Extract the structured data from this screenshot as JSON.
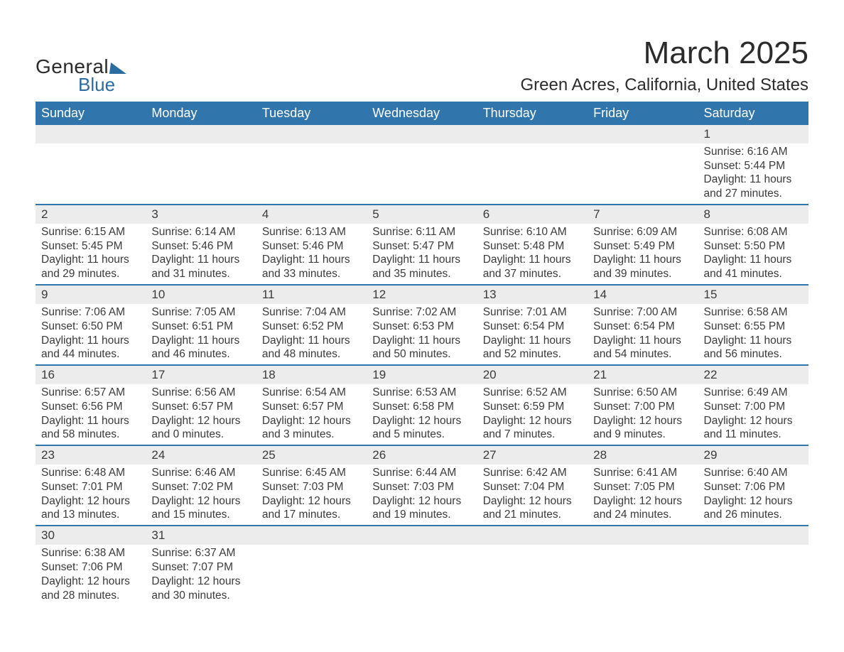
{
  "header": {
    "logo_general": "General",
    "logo_blue": "Blue",
    "month_title": "March 2025",
    "location": "Green Acres, California, United States"
  },
  "styling": {
    "page_bg": "#ffffff",
    "header_bg": "#3175ad",
    "header_text_color": "#ffffff",
    "daynum_bg": "#ececec",
    "row_border_color": "#3175ad",
    "body_text_color": "#3a3a3a",
    "logo_text_color": "#2b2b2b",
    "logo_blue_color": "#2b6ca3",
    "month_title_fontsize": 44,
    "location_fontsize": 24,
    "header_fontsize": 18,
    "daynum_fontsize": 17,
    "cell_fontsize": 15.5,
    "columns": 7,
    "weeks": 6
  },
  "day_headers": [
    "Sunday",
    "Monday",
    "Tuesday",
    "Wednesday",
    "Thursday",
    "Friday",
    "Saturday"
  ],
  "weeks": [
    [
      null,
      null,
      null,
      null,
      null,
      null,
      {
        "n": "1",
        "sr": "Sunrise: 6:16 AM",
        "ss": "Sunset: 5:44 PM",
        "d1": "Daylight: 11 hours",
        "d2": "and 27 minutes."
      }
    ],
    [
      {
        "n": "2",
        "sr": "Sunrise: 6:15 AM",
        "ss": "Sunset: 5:45 PM",
        "d1": "Daylight: 11 hours",
        "d2": "and 29 minutes."
      },
      {
        "n": "3",
        "sr": "Sunrise: 6:14 AM",
        "ss": "Sunset: 5:46 PM",
        "d1": "Daylight: 11 hours",
        "d2": "and 31 minutes."
      },
      {
        "n": "4",
        "sr": "Sunrise: 6:13 AM",
        "ss": "Sunset: 5:46 PM",
        "d1": "Daylight: 11 hours",
        "d2": "and 33 minutes."
      },
      {
        "n": "5",
        "sr": "Sunrise: 6:11 AM",
        "ss": "Sunset: 5:47 PM",
        "d1": "Daylight: 11 hours",
        "d2": "and 35 minutes."
      },
      {
        "n": "6",
        "sr": "Sunrise: 6:10 AM",
        "ss": "Sunset: 5:48 PM",
        "d1": "Daylight: 11 hours",
        "d2": "and 37 minutes."
      },
      {
        "n": "7",
        "sr": "Sunrise: 6:09 AM",
        "ss": "Sunset: 5:49 PM",
        "d1": "Daylight: 11 hours",
        "d2": "and 39 minutes."
      },
      {
        "n": "8",
        "sr": "Sunrise: 6:08 AM",
        "ss": "Sunset: 5:50 PM",
        "d1": "Daylight: 11 hours",
        "d2": "and 41 minutes."
      }
    ],
    [
      {
        "n": "9",
        "sr": "Sunrise: 7:06 AM",
        "ss": "Sunset: 6:50 PM",
        "d1": "Daylight: 11 hours",
        "d2": "and 44 minutes."
      },
      {
        "n": "10",
        "sr": "Sunrise: 7:05 AM",
        "ss": "Sunset: 6:51 PM",
        "d1": "Daylight: 11 hours",
        "d2": "and 46 minutes."
      },
      {
        "n": "11",
        "sr": "Sunrise: 7:04 AM",
        "ss": "Sunset: 6:52 PM",
        "d1": "Daylight: 11 hours",
        "d2": "and 48 minutes."
      },
      {
        "n": "12",
        "sr": "Sunrise: 7:02 AM",
        "ss": "Sunset: 6:53 PM",
        "d1": "Daylight: 11 hours",
        "d2": "and 50 minutes."
      },
      {
        "n": "13",
        "sr": "Sunrise: 7:01 AM",
        "ss": "Sunset: 6:54 PM",
        "d1": "Daylight: 11 hours",
        "d2": "and 52 minutes."
      },
      {
        "n": "14",
        "sr": "Sunrise: 7:00 AM",
        "ss": "Sunset: 6:54 PM",
        "d1": "Daylight: 11 hours",
        "d2": "and 54 minutes."
      },
      {
        "n": "15",
        "sr": "Sunrise: 6:58 AM",
        "ss": "Sunset: 6:55 PM",
        "d1": "Daylight: 11 hours",
        "d2": "and 56 minutes."
      }
    ],
    [
      {
        "n": "16",
        "sr": "Sunrise: 6:57 AM",
        "ss": "Sunset: 6:56 PM",
        "d1": "Daylight: 11 hours",
        "d2": "and 58 minutes."
      },
      {
        "n": "17",
        "sr": "Sunrise: 6:56 AM",
        "ss": "Sunset: 6:57 PM",
        "d1": "Daylight: 12 hours",
        "d2": "and 0 minutes."
      },
      {
        "n": "18",
        "sr": "Sunrise: 6:54 AM",
        "ss": "Sunset: 6:57 PM",
        "d1": "Daylight: 12 hours",
        "d2": "and 3 minutes."
      },
      {
        "n": "19",
        "sr": "Sunrise: 6:53 AM",
        "ss": "Sunset: 6:58 PM",
        "d1": "Daylight: 12 hours",
        "d2": "and 5 minutes."
      },
      {
        "n": "20",
        "sr": "Sunrise: 6:52 AM",
        "ss": "Sunset: 6:59 PM",
        "d1": "Daylight: 12 hours",
        "d2": "and 7 minutes."
      },
      {
        "n": "21",
        "sr": "Sunrise: 6:50 AM",
        "ss": "Sunset: 7:00 PM",
        "d1": "Daylight: 12 hours",
        "d2": "and 9 minutes."
      },
      {
        "n": "22",
        "sr": "Sunrise: 6:49 AM",
        "ss": "Sunset: 7:00 PM",
        "d1": "Daylight: 12 hours",
        "d2": "and 11 minutes."
      }
    ],
    [
      {
        "n": "23",
        "sr": "Sunrise: 6:48 AM",
        "ss": "Sunset: 7:01 PM",
        "d1": "Daylight: 12 hours",
        "d2": "and 13 minutes."
      },
      {
        "n": "24",
        "sr": "Sunrise: 6:46 AM",
        "ss": "Sunset: 7:02 PM",
        "d1": "Daylight: 12 hours",
        "d2": "and 15 minutes."
      },
      {
        "n": "25",
        "sr": "Sunrise: 6:45 AM",
        "ss": "Sunset: 7:03 PM",
        "d1": "Daylight: 12 hours",
        "d2": "and 17 minutes."
      },
      {
        "n": "26",
        "sr": "Sunrise: 6:44 AM",
        "ss": "Sunset: 7:03 PM",
        "d1": "Daylight: 12 hours",
        "d2": "and 19 minutes."
      },
      {
        "n": "27",
        "sr": "Sunrise: 6:42 AM",
        "ss": "Sunset: 7:04 PM",
        "d1": "Daylight: 12 hours",
        "d2": "and 21 minutes."
      },
      {
        "n": "28",
        "sr": "Sunrise: 6:41 AM",
        "ss": "Sunset: 7:05 PM",
        "d1": "Daylight: 12 hours",
        "d2": "and 24 minutes."
      },
      {
        "n": "29",
        "sr": "Sunrise: 6:40 AM",
        "ss": "Sunset: 7:06 PM",
        "d1": "Daylight: 12 hours",
        "d2": "and 26 minutes."
      }
    ],
    [
      {
        "n": "30",
        "sr": "Sunrise: 6:38 AM",
        "ss": "Sunset: 7:06 PM",
        "d1": "Daylight: 12 hours",
        "d2": "and 28 minutes."
      },
      {
        "n": "31",
        "sr": "Sunrise: 6:37 AM",
        "ss": "Sunset: 7:07 PM",
        "d1": "Daylight: 12 hours",
        "d2": "and 30 minutes."
      },
      null,
      null,
      null,
      null,
      null
    ]
  ]
}
